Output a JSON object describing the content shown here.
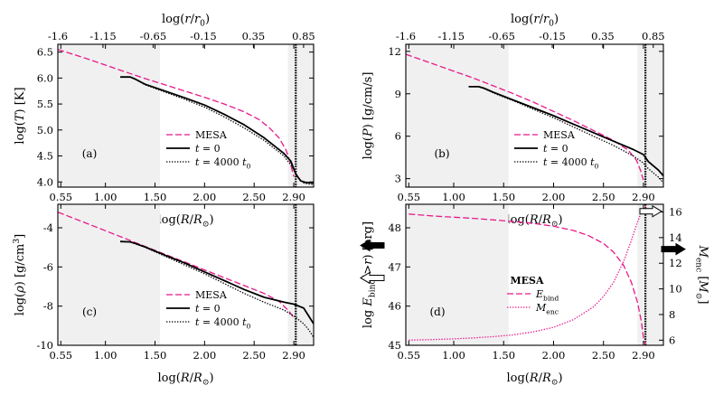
{
  "chart_data": [
    {
      "type": "line",
      "panel": "(a)",
      "xlabel": "log(R/R_⊙)",
      "ylabel": "log(T) [K]",
      "top_xlabel": "log(r/r0)",
      "xlim": [
        0.52,
        3.1
      ],
      "ylim": [
        3.9,
        6.65
      ],
      "top_xlim": [
        -1.6,
        0.95
      ],
      "xticks": [
        "0.55",
        "1.00",
        "1.50",
        "2.00",
        "2.50",
        "2.90"
      ],
      "xtick_values": [
        0.55,
        1.0,
        1.5,
        2.0,
        2.5,
        2.9
      ],
      "top_xticks": [
        "-1.6",
        "-1.15",
        "-0.65",
        "-0.15",
        "0.35",
        "0.85"
      ],
      "top_xtick_values": [
        -1.6,
        -1.15,
        -0.65,
        -0.15,
        0.35,
        0.85
      ],
      "yticks": [
        "4.0",
        "4.5",
        "5.0",
        "5.5",
        "6.0",
        "6.5"
      ],
      "ytick_values": [
        4.0,
        4.5,
        5.0,
        5.5,
        6.0,
        6.5
      ],
      "shaded_regions": [
        [
          0.52,
          1.55
        ],
        [
          2.84,
          3.1
        ]
      ],
      "vline": 2.92,
      "legend": [
        "MESA",
        "t = 0",
        "t = 4000 t0"
      ],
      "legend_position": "lower-center",
      "series": [
        {
          "name": "MESA",
          "style": "dashed",
          "color": "#e8198b",
          "x": [
            0.52,
            0.8,
            1.0,
            1.2,
            1.4,
            1.6,
            1.8,
            2.0,
            2.2,
            2.4,
            2.55,
            2.65,
            2.75,
            2.82,
            2.86,
            2.88,
            2.9
          ],
          "y": [
            6.55,
            6.38,
            6.25,
            6.12,
            5.99,
            5.87,
            5.75,
            5.63,
            5.5,
            5.35,
            5.2,
            5.05,
            4.85,
            4.62,
            4.4,
            4.25,
            4.1
          ]
        },
        {
          "name": "t = 0",
          "style": "solid",
          "color": "#000000",
          "x": [
            1.15,
            1.25,
            1.3,
            1.4,
            1.6,
            1.8,
            2.0,
            2.2,
            2.4,
            2.6,
            2.8,
            2.87,
            2.92,
            2.97,
            3.02,
            3.1
          ],
          "y": [
            6.02,
            6.02,
            5.98,
            5.88,
            5.75,
            5.62,
            5.48,
            5.3,
            5.1,
            4.85,
            4.55,
            4.4,
            4.15,
            4.02,
            3.99,
            3.98
          ]
        },
        {
          "name": "t = 4000 t0",
          "style": "dotted",
          "color": "#000000",
          "x": [
            1.15,
            1.25,
            1.3,
            1.4,
            1.6,
            1.8,
            2.0,
            2.2,
            2.4,
            2.6,
            2.8,
            2.88,
            2.95,
            3.0,
            3.05,
            3.1
          ],
          "y": [
            6.02,
            6.02,
            5.98,
            5.87,
            5.73,
            5.59,
            5.44,
            5.25,
            5.04,
            4.8,
            4.5,
            4.3,
            4.07,
            3.98,
            3.96,
            3.95
          ]
        }
      ]
    },
    {
      "type": "line",
      "panel": "(b)",
      "xlabel": "log(R/R_⊙)",
      "ylabel": "log(P) [g/cm/s]",
      "top_xlabel": "log(r/r0)",
      "xlim": [
        0.52,
        3.1
      ],
      "ylim": [
        2.4,
        12.5
      ],
      "top_xlim": [
        -1.6,
        0.95
      ],
      "xticks": [
        "0.55",
        "1.00",
        "1.50",
        "2.00",
        "2.50",
        "2.90"
      ],
      "xtick_values": [
        0.55,
        1.0,
        1.5,
        2.0,
        2.5,
        2.9
      ],
      "top_xticks": [
        "-1.6",
        "-1.15",
        "-0.65",
        "-0.15",
        "0.35",
        "0.85"
      ],
      "top_xtick_values": [
        -1.6,
        -1.15,
        -0.65,
        -0.15,
        0.35,
        0.85
      ],
      "yticks": [
        "3",
        "6",
        "9",
        "12"
      ],
      "ytick_values": [
        3,
        6,
        9,
        12
      ],
      "shaded_regions": [
        [
          0.52,
          1.55
        ],
        [
          2.84,
          3.1
        ]
      ],
      "vline": 2.92,
      "legend": [
        "MESA",
        "t = 0",
        "t = 4000 t0"
      ],
      "legend_position": "lower-center",
      "series": [
        {
          "name": "MESA",
          "style": "dashed",
          "color": "#e8198b",
          "x": [
            0.52,
            0.8,
            1.0,
            1.2,
            1.4,
            1.6,
            1.8,
            2.0,
            2.2,
            2.4,
            2.6,
            2.75,
            2.83,
            2.87,
            2.9
          ],
          "y": [
            11.8,
            11.1,
            10.6,
            10.1,
            9.55,
            9.0,
            8.4,
            7.75,
            7.1,
            6.4,
            5.7,
            5.0,
            4.3,
            3.6,
            2.9
          ]
        },
        {
          "name": "t = 0",
          "style": "solid",
          "color": "#000000",
          "x": [
            1.15,
            1.25,
            1.3,
            1.4,
            1.6,
            1.8,
            2.0,
            2.2,
            2.4,
            2.6,
            2.8,
            2.9,
            2.95,
            3.05,
            3.1
          ],
          "y": [
            9.5,
            9.5,
            9.4,
            9.1,
            8.55,
            8.0,
            7.45,
            6.85,
            6.25,
            5.65,
            5.05,
            4.7,
            4.2,
            3.6,
            3.2
          ]
        },
        {
          "name": "t = 4000 t0",
          "style": "dotted",
          "color": "#000000",
          "x": [
            1.15,
            1.25,
            1.3,
            1.4,
            1.6,
            1.8,
            2.0,
            2.2,
            2.4,
            2.6,
            2.8,
            2.9,
            2.95,
            3.05,
            3.1
          ],
          "y": [
            9.5,
            9.5,
            9.4,
            9.05,
            8.5,
            7.9,
            7.3,
            6.65,
            6.0,
            5.35,
            4.6,
            4.1,
            3.7,
            3.1,
            2.7
          ]
        }
      ]
    },
    {
      "type": "line",
      "panel": "(c)",
      "xlabel": "log(R/R_⊙)",
      "ylabel": "log(ρ) [g/cm³]",
      "xlim": [
        0.52,
        3.1
      ],
      "ylim": [
        -10.0,
        -2.8
      ],
      "xticks": [
        "0.55",
        "1.00",
        "1.50",
        "2.00",
        "2.50",
        "2.90"
      ],
      "xtick_values": [
        0.55,
        1.0,
        1.5,
        2.0,
        2.5,
        2.9
      ],
      "yticks": [
        "-10",
        "-8",
        "-6",
        "-4"
      ],
      "ytick_values": [
        -10,
        -8,
        -6,
        -4
      ],
      "shaded_regions": [
        [
          0.52,
          1.55
        ],
        [
          2.84,
          3.1
        ]
      ],
      "vline": 2.92,
      "legend": [
        "MESA",
        "t = 0",
        "t = 4000 t0"
      ],
      "legend_position": "lower-center",
      "series": [
        {
          "name": "MESA",
          "style": "dashed",
          "color": "#e8198b",
          "x": [
            0.52,
            0.8,
            1.0,
            1.2,
            1.4,
            1.6,
            1.8,
            2.0,
            2.2,
            2.4,
            2.6,
            2.75,
            2.85,
            2.9
          ],
          "y": [
            -3.2,
            -3.75,
            -4.15,
            -4.55,
            -4.95,
            -5.35,
            -5.75,
            -6.15,
            -6.55,
            -6.95,
            -7.35,
            -7.75,
            -8.25,
            -8.6
          ]
        },
        {
          "name": "t = 0",
          "style": "solid",
          "color": "#000000",
          "x": [
            1.15,
            1.25,
            1.3,
            1.4,
            1.6,
            1.8,
            2.0,
            2.2,
            2.4,
            2.6,
            2.8,
            2.9,
            3.0,
            3.05,
            3.1
          ],
          "y": [
            -4.7,
            -4.72,
            -4.8,
            -4.98,
            -5.4,
            -5.8,
            -6.25,
            -6.7,
            -7.15,
            -7.55,
            -7.8,
            -7.9,
            -8.1,
            -8.5,
            -8.9
          ]
        },
        {
          "name": "t = 4000 t0",
          "style": "dotted",
          "color": "#000000",
          "x": [
            1.15,
            1.25,
            1.3,
            1.4,
            1.6,
            1.8,
            2.0,
            2.2,
            2.4,
            2.6,
            2.8,
            2.9,
            3.0,
            3.05,
            3.1
          ],
          "y": [
            -4.7,
            -4.72,
            -4.82,
            -5.0,
            -5.45,
            -5.9,
            -6.35,
            -6.85,
            -7.35,
            -7.8,
            -8.2,
            -8.5,
            -8.9,
            -9.2,
            -9.6
          ]
        }
      ]
    },
    {
      "type": "line",
      "panel": "(d)",
      "xlabel": "log(R/R_⊙)",
      "ylabel": "log E_bind(>r) [erg]",
      "ylabel_right": "M_enc [M_⊙]",
      "xlim": [
        0.52,
        3.1
      ],
      "ylim": [
        45.0,
        48.6
      ],
      "ylim_right": [
        5.6,
        16.6
      ],
      "xticks": [
        "0.55",
        "1.00",
        "1.50",
        "2.00",
        "2.50",
        "2.90"
      ],
      "xtick_values": [
        0.55,
        1.0,
        1.5,
        2.0,
        2.5,
        2.9
      ],
      "yticks": [
        "45",
        "46",
        "47",
        "48"
      ],
      "ytick_values": [
        45,
        46,
        47,
        48
      ],
      "yticks_right": [
        "6",
        "8",
        "10",
        "12",
        "14",
        "16"
      ],
      "ytick_values_right": [
        6,
        8,
        10,
        12,
        14,
        16
      ],
      "shaded_regions": [
        [
          0.52,
          1.55
        ],
        [
          2.84,
          3.1
        ]
      ],
      "vline": 2.92,
      "legend_title": "MESA",
      "legend": [
        "E_bind",
        "M_enc"
      ],
      "legend_position": "center",
      "axis_arrows": [
        {
          "side": "left",
          "fill": "solid",
          "value": 47.55
        },
        {
          "side": "left",
          "fill": "open",
          "value": 46.72
        },
        {
          "side": "right",
          "fill": "solid",
          "value": 13.1
        },
        {
          "side": "right",
          "fill": "open",
          "value": 16.05
        }
      ],
      "series": [
        {
          "name": "E_bind",
          "style": "dashed",
          "color": "#e8198b",
          "axis": "left",
          "x": [
            0.55,
            0.8,
            1.0,
            1.2,
            1.4,
            1.6,
            1.8,
            2.0,
            2.2,
            2.35,
            2.5,
            2.6,
            2.7,
            2.78,
            2.84,
            2.88,
            2.9,
            2.92
          ],
          "y": [
            48.35,
            48.3,
            48.27,
            48.24,
            48.2,
            48.16,
            48.11,
            48.04,
            47.93,
            47.8,
            47.6,
            47.38,
            47.05,
            46.6,
            46.1,
            45.6,
            45.2,
            45.0
          ]
        },
        {
          "name": "M_enc",
          "style": "dotted",
          "color": "#e8198b",
          "axis": "right",
          "x": [
            0.55,
            0.8,
            1.0,
            1.2,
            1.4,
            1.6,
            1.8,
            2.0,
            2.2,
            2.4,
            2.5,
            2.6,
            2.7,
            2.78,
            2.84,
            2.88,
            2.92
          ],
          "y": [
            6.0,
            6.05,
            6.1,
            6.18,
            6.28,
            6.42,
            6.65,
            7.0,
            7.6,
            8.6,
            9.4,
            10.5,
            12.1,
            13.8,
            15.2,
            16.0,
            16.4
          ]
        }
      ]
    }
  ]
}
